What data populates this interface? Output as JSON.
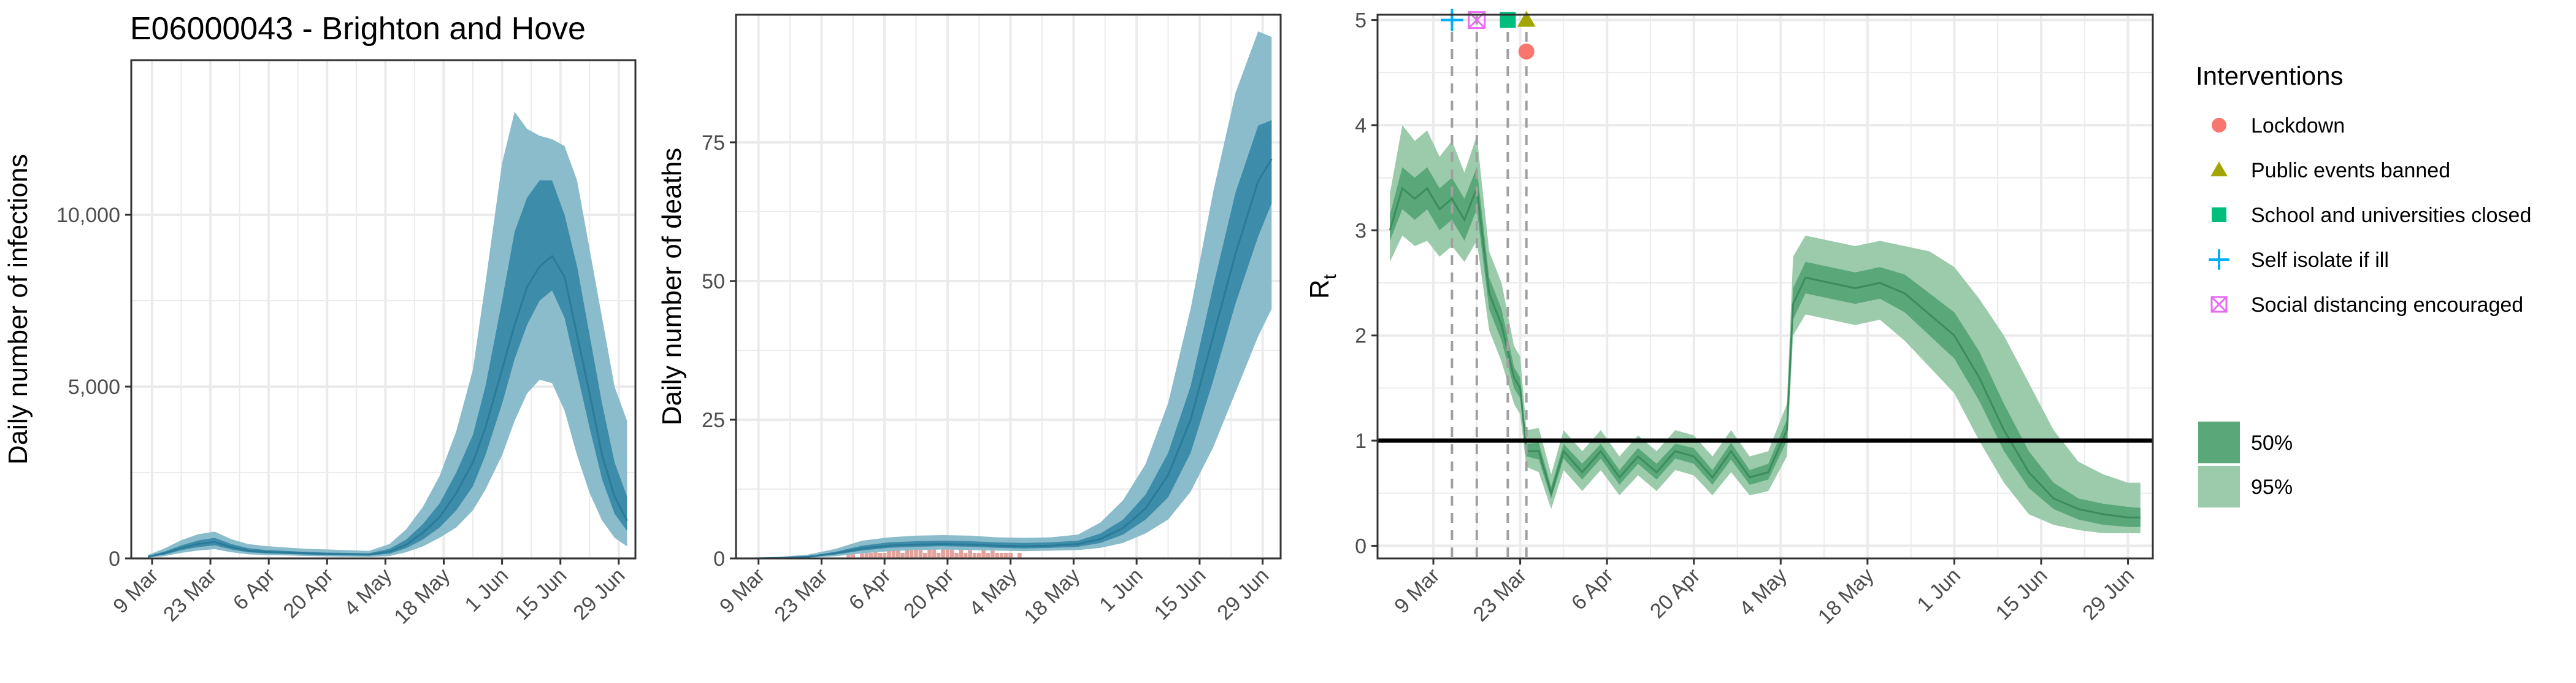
{
  "figure_title": "E06000043 - Brighton and Hove",
  "colors": {
    "band_blue_95": "#8bbccc",
    "band_blue_50": "#3d8ca9",
    "line_blue": "#2a7b99",
    "band_green_95": "#9bcbab",
    "band_green_50": "#5aa77a",
    "line_green": "#3c8d5e",
    "bars": "#e3a39c",
    "grid": "#ebebeb",
    "panel_border": "#333333",
    "lockdown": "#f8766d",
    "public_events": "#a3a500",
    "school": "#00bf7d",
    "self_isolate": "#00b0f6",
    "social_distancing": "#e76bf3"
  },
  "legend": {
    "interventions_title": "Interventions",
    "interventions": [
      {
        "label": "Lockdown",
        "shape": "circle",
        "color": "#f8766d"
      },
      {
        "label": "Public events banned",
        "shape": "triangle",
        "color": "#a3a500"
      },
      {
        "label": "School and universities closed",
        "shape": "square",
        "color": "#00bf7d"
      },
      {
        "label": "Self isolate if ill",
        "shape": "plus",
        "color": "#00b0f6"
      },
      {
        "label": "Social distancing encouraged",
        "shape": "boxcross",
        "color": "#e76bf3"
      }
    ],
    "ci": [
      {
        "label": "50%",
        "color": "#5aa77a"
      },
      {
        "label": "95%",
        "color": "#9bcbab"
      }
    ]
  },
  "chart_data": [
    {
      "type": "area",
      "title": "E06000043 - Brighton and Hove",
      "xlabel": "",
      "ylabel": "Daily number of infections",
      "ylim": [
        0,
        14500
      ],
      "yticks": [
        0,
        5000,
        10000
      ],
      "ytick_labels": [
        "0",
        "5,000",
        "10,000"
      ],
      "xlim": [
        "2020-03-04",
        "2020-07-03"
      ],
      "xticks": [
        "2020-03-09",
        "2020-03-23",
        "2020-04-06",
        "2020-04-20",
        "2020-05-04",
        "2020-05-18",
        "2020-06-01",
        "2020-06-15",
        "2020-06-29"
      ],
      "xtick_labels": [
        "9 Mar",
        "23 Mar",
        "6 Apr",
        "20 Apr",
        "4 May",
        "18 May",
        "1 Jun",
        "15 Jun",
        "29 Jun"
      ],
      "x": [
        "2020-03-08",
        "2020-03-12",
        "2020-03-16",
        "2020-03-20",
        "2020-03-24",
        "2020-03-28",
        "2020-04-01",
        "2020-04-05",
        "2020-04-10",
        "2020-04-15",
        "2020-04-20",
        "2020-04-25",
        "2020-04-30",
        "2020-05-05",
        "2020-05-09",
        "2020-05-13",
        "2020-05-17",
        "2020-05-21",
        "2020-05-25",
        "2020-05-28",
        "2020-06-01",
        "2020-06-04",
        "2020-06-07",
        "2020-06-10",
        "2020-06-13",
        "2020-06-16",
        "2020-06-19",
        "2020-06-22",
        "2020-06-25",
        "2020-06-28",
        "2020-07-01"
      ],
      "median": [
        50,
        150,
        300,
        420,
        480,
        330,
        230,
        190,
        170,
        150,
        130,
        120,
        110,
        200,
        400,
        750,
        1200,
        1900,
        2800,
        3800,
        5500,
        6800,
        7900,
        8500,
        8800,
        8200,
        6500,
        4800,
        3000,
        1800,
        1100
      ],
      "ci50_low": [
        40,
        110,
        240,
        330,
        380,
        260,
        180,
        150,
        130,
        110,
        100,
        90,
        80,
        140,
        300,
        550,
        900,
        1400,
        2100,
        3000,
        4500,
        5800,
        6800,
        7500,
        7800,
        7000,
        5400,
        3800,
        2300,
        1300,
        800
      ],
      "ci50_high": [
        70,
        200,
        380,
        520,
        600,
        420,
        300,
        250,
        220,
        190,
        170,
        160,
        150,
        280,
        550,
        1000,
        1600,
        2500,
        3600,
        5000,
        7500,
        9500,
        10500,
        11000,
        11000,
        10000,
        8500,
        6500,
        4500,
        2800,
        1800
      ],
      "ci95_low": [
        20,
        70,
        160,
        230,
        270,
        180,
        120,
        100,
        90,
        70,
        60,
        50,
        40,
        70,
        180,
        350,
        600,
        900,
        1400,
        2000,
        3000,
        4000,
        4800,
        5200,
        5100,
        4300,
        3000,
        1900,
        1100,
        600,
        350
      ],
      "ci95_high": [
        100,
        290,
        530,
        700,
        780,
        560,
        420,
        360,
        320,
        280,
        260,
        240,
        220,
        420,
        850,
        1500,
        2400,
        3700,
        5500,
        8000,
        11500,
        13000,
        12500,
        12300,
        12200,
        12000,
        11000,
        9000,
        7000,
        5000,
        4000
      ]
    },
    {
      "type": "area",
      "xlabel": "",
      "ylabel": "Daily number of deaths",
      "ylim": [
        0,
        98
      ],
      "yticks": [
        0,
        25,
        50,
        75
      ],
      "ytick_labels": [
        "0",
        "25",
        "50",
        "75"
      ],
      "xlim": [
        "2020-03-04",
        "2020-07-03"
      ],
      "xticks": [
        "2020-03-09",
        "2020-03-23",
        "2020-04-06",
        "2020-04-20",
        "2020-05-04",
        "2020-05-18",
        "2020-06-01",
        "2020-06-15",
        "2020-06-29"
      ],
      "xtick_labels": [
        "9 Mar",
        "23 Mar",
        "6 Apr",
        "20 Apr",
        "4 May",
        "18 May",
        "1 Jun",
        "15 Jun",
        "29 Jun"
      ],
      "x": [
        "2020-03-08",
        "2020-03-14",
        "2020-03-20",
        "2020-03-26",
        "2020-04-01",
        "2020-04-07",
        "2020-04-13",
        "2020-04-19",
        "2020-04-25",
        "2020-05-01",
        "2020-05-07",
        "2020-05-13",
        "2020-05-19",
        "2020-05-24",
        "2020-05-29",
        "2020-06-03",
        "2020-06-08",
        "2020-06-13",
        "2020-06-18",
        "2020-06-23",
        "2020-06-28",
        "2020-07-01"
      ],
      "median": [
        0,
        0.1,
        0.3,
        0.9,
        1.8,
        2.3,
        2.5,
        2.6,
        2.5,
        2.3,
        2.2,
        2.3,
        2.6,
        3.5,
        5.5,
        9,
        15,
        25,
        40,
        55,
        68,
        72
      ],
      "ci50_low": [
        0,
        0.1,
        0.2,
        0.7,
        1.4,
        1.9,
        2.1,
        2.2,
        2.1,
        1.9,
        1.8,
        1.9,
        2.1,
        2.8,
        4.3,
        7,
        11,
        19,
        32,
        46,
        58,
        64
      ],
      "ci50_high": [
        0,
        0.2,
        0.4,
        1.2,
        2.3,
        2.9,
        3.1,
        3.2,
        3.1,
        2.9,
        2.8,
        2.9,
        3.2,
        4.5,
        7,
        11.5,
        19,
        31,
        49,
        66,
        78,
        79
      ],
      "ci95_low": [
        0,
        0,
        0.1,
        0.4,
        0.9,
        1.3,
        1.5,
        1.6,
        1.5,
        1.4,
        1.3,
        1.4,
        1.5,
        1.9,
        2.8,
        4.5,
        7,
        12,
        20,
        30,
        40,
        45
      ],
      "ci95_high": [
        0,
        0.3,
        0.7,
        1.7,
        3.2,
        3.8,
        4.1,
        4.2,
        4.1,
        3.8,
        3.7,
        3.8,
        4.3,
        6.5,
        10.5,
        17,
        28,
        45,
        66,
        84,
        95,
        94
      ],
      "observed_deaths": {
        "start": "2020-03-28",
        "values": [
          0,
          1,
          1,
          0,
          1,
          2,
          1,
          2,
          1,
          1,
          2,
          3,
          2,
          1,
          2,
          2,
          3,
          2,
          1,
          2,
          2,
          1,
          3,
          2,
          2,
          1,
          2,
          1,
          2,
          1,
          1,
          2,
          1,
          2,
          1,
          1,
          1,
          1,
          0,
          1
        ]
      }
    },
    {
      "type": "area",
      "xlabel": "",
      "ylabel": "R",
      "ylabel_subscript": "t",
      "ylim": [
        -0.12,
        5.05
      ],
      "yticks": [
        0,
        1,
        2,
        3,
        4,
        5
      ],
      "ytick_labels": [
        "0",
        "1",
        "2",
        "3",
        "4",
        "5"
      ],
      "xlim": [
        "2020-02-29",
        "2020-07-03"
      ],
      "xticks": [
        "2020-03-09",
        "2020-03-23",
        "2020-04-06",
        "2020-04-20",
        "2020-05-04",
        "2020-05-18",
        "2020-06-01",
        "2020-06-15",
        "2020-06-29"
      ],
      "xtick_labels": [
        "9 Mar",
        "23 Mar",
        "6 Apr",
        "20 Apr",
        "4 May",
        "18 May",
        "1 Jun",
        "15 Jun",
        "29 Jun"
      ],
      "reference_line": 1,
      "x": [
        "2020-03-02",
        "2020-03-04",
        "2020-03-06",
        "2020-03-08",
        "2020-03-10",
        "2020-03-12",
        "2020-03-14",
        "2020-03-16",
        "2020-03-18",
        "2020-03-20",
        "2020-03-22",
        "2020-03-23",
        "2020-03-24",
        "2020-03-26",
        "2020-03-28",
        "2020-03-30",
        "2020-04-02",
        "2020-04-05",
        "2020-04-08",
        "2020-04-11",
        "2020-04-14",
        "2020-04-17",
        "2020-04-20",
        "2020-04-23",
        "2020-04-26",
        "2020-04-29",
        "2020-05-02",
        "2020-05-05",
        "2020-05-06",
        "2020-05-08",
        "2020-05-12",
        "2020-05-16",
        "2020-05-20",
        "2020-05-24",
        "2020-05-28",
        "2020-06-01",
        "2020-06-05",
        "2020-06-09",
        "2020-06-13",
        "2020-06-17",
        "2020-06-21",
        "2020-06-25",
        "2020-06-29",
        "2020-07-01"
      ],
      "median": [
        3.0,
        3.4,
        3.3,
        3.4,
        3.2,
        3.3,
        3.1,
        3.4,
        2.4,
        2.1,
        1.6,
        1.5,
        0.9,
        0.9,
        0.5,
        0.9,
        0.7,
        0.9,
        0.65,
        0.85,
        0.7,
        0.9,
        0.85,
        0.65,
        0.9,
        0.65,
        0.7,
        1.1,
        2.3,
        2.55,
        2.5,
        2.45,
        2.5,
        2.4,
        2.2,
        2.0,
        1.6,
        1.1,
        0.7,
        0.45,
        0.35,
        0.3,
        0.27,
        0.27
      ],
      "ci50_low": [
        2.9,
        3.2,
        3.1,
        3.2,
        3.0,
        3.1,
        2.9,
        3.2,
        2.25,
        1.95,
        1.5,
        1.4,
        0.85,
        0.82,
        0.45,
        0.83,
        0.63,
        0.83,
        0.58,
        0.78,
        0.63,
        0.83,
        0.78,
        0.58,
        0.82,
        0.58,
        0.63,
        1.0,
        2.15,
        2.4,
        2.35,
        2.3,
        2.35,
        2.22,
        2.0,
        1.78,
        1.38,
        0.9,
        0.55,
        0.35,
        0.25,
        0.2,
        0.18,
        0.18
      ],
      "ci50_high": [
        3.15,
        3.6,
        3.5,
        3.6,
        3.4,
        3.5,
        3.3,
        3.6,
        2.55,
        2.25,
        1.7,
        1.6,
        0.97,
        0.98,
        0.56,
        0.97,
        0.78,
        0.97,
        0.72,
        0.93,
        0.78,
        0.97,
        0.93,
        0.72,
        0.98,
        0.72,
        0.78,
        1.2,
        2.45,
        2.7,
        2.65,
        2.6,
        2.65,
        2.58,
        2.4,
        2.22,
        1.85,
        1.35,
        0.9,
        0.6,
        0.45,
        0.4,
        0.37,
        0.36
      ],
      "ci95_low": [
        2.7,
        2.95,
        2.85,
        2.9,
        2.75,
        2.85,
        2.7,
        2.9,
        2.05,
        1.75,
        1.35,
        1.25,
        0.75,
        0.7,
        0.35,
        0.72,
        0.52,
        0.72,
        0.48,
        0.67,
        0.52,
        0.72,
        0.67,
        0.48,
        0.7,
        0.48,
        0.52,
        0.85,
        2.0,
        2.2,
        2.15,
        2.1,
        2.15,
        1.95,
        1.7,
        1.45,
        1.0,
        0.6,
        0.3,
        0.2,
        0.15,
        0.12,
        0.12,
        0.12
      ],
      "ci95_high": [
        3.35,
        4.0,
        3.85,
        3.95,
        3.7,
        3.85,
        3.55,
        3.9,
        2.8,
        2.5,
        1.9,
        1.8,
        1.1,
        1.12,
        0.68,
        1.1,
        0.9,
        1.1,
        0.85,
        1.05,
        0.9,
        1.1,
        1.05,
        0.85,
        1.1,
        0.85,
        0.9,
        1.35,
        2.75,
        2.95,
        2.9,
        2.85,
        2.9,
        2.85,
        2.8,
        2.65,
        2.35,
        2.0,
        1.55,
        1.1,
        0.8,
        0.68,
        0.6,
        0.6
      ],
      "interventions": [
        {
          "name": "Self isolate if ill",
          "date": "2020-03-12",
          "marker": "plus",
          "y": 5.0
        },
        {
          "name": "Social distancing encouraged",
          "date": "2020-03-16",
          "marker": "boxcross",
          "y": 5.0
        },
        {
          "name": "School and universities closed",
          "date": "2020-03-21",
          "marker": "square",
          "y": 5.0
        },
        {
          "name": "Public events banned",
          "date": "2020-03-24",
          "marker": "triangle",
          "y": 5.0
        },
        {
          "name": "Lockdown",
          "date": "2020-03-24",
          "marker": "circle",
          "y": 4.7
        }
      ]
    }
  ]
}
